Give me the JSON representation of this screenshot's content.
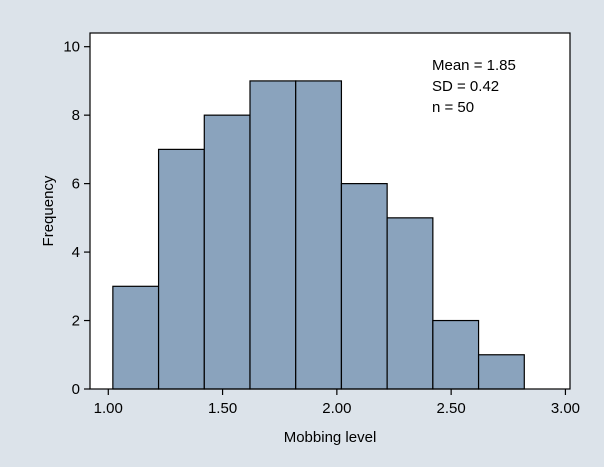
{
  "chart_data": {
    "type": "bar",
    "title": "",
    "xlabel": "Mobbing level",
    "ylabel": "Frequency",
    "bins": [
      {
        "from": 1.02,
        "to": 1.22,
        "count": 3
      },
      {
        "from": 1.22,
        "to": 1.42,
        "count": 7
      },
      {
        "from": 1.42,
        "to": 1.62,
        "count": 8
      },
      {
        "from": 1.62,
        "to": 1.82,
        "count": 9
      },
      {
        "from": 1.82,
        "to": 2.02,
        "count": 9
      },
      {
        "from": 2.02,
        "to": 2.22,
        "count": 6
      },
      {
        "from": 2.22,
        "to": 2.42,
        "count": 5
      },
      {
        "from": 2.42,
        "to": 2.62,
        "count": 2
      },
      {
        "from": 2.62,
        "to": 2.82,
        "count": 1
      }
    ],
    "xlim": [
      0.92,
      3.02
    ],
    "ylim": [
      0,
      10.4
    ],
    "xticks": [
      "1.00",
      "1.50",
      "2.00",
      "2.50",
      "3.00"
    ],
    "yticks": [
      "0",
      "2",
      "4",
      "6",
      "8",
      "10"
    ],
    "xtick_values": [
      1.0,
      1.5,
      2.0,
      2.5,
      3.0
    ],
    "ytick_values": [
      0,
      2,
      4,
      6,
      8,
      10
    ],
    "stats": [
      "Mean = 1.85",
      "SD = 0.42",
      "n = 50"
    ],
    "grid": false,
    "colors": {
      "bar_fill": "#8aa3bd",
      "bar_stroke": "#000000",
      "plot_background": "#ffffff",
      "figure_background": "#dce3ea"
    }
  }
}
